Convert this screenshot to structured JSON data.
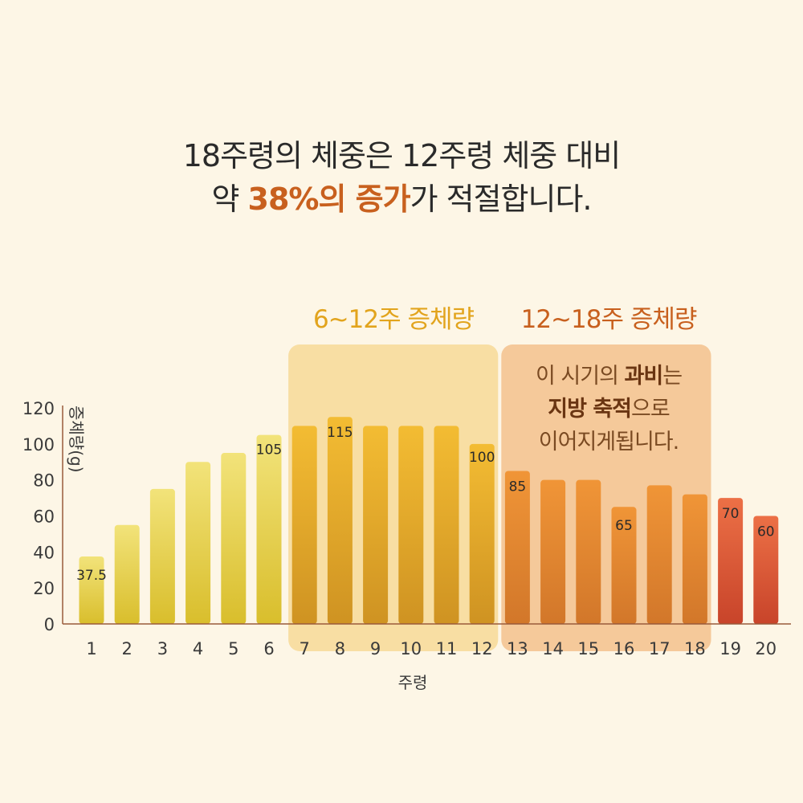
{
  "headline": {
    "line1": "18주령의 체중은 12주령 체중 대비",
    "line2_prefix": "약 ",
    "line2_accent_1": "38%의 증가",
    "line2_suffix": "가 적절합니다."
  },
  "periods": [
    {
      "label": "6~12주 증체량",
      "from": 7,
      "to": 12,
      "color": "#F8DEA3"
    },
    {
      "label": "12~18주 증체량",
      "from": 13,
      "to": 18,
      "color": "#F5C99A"
    }
  ],
  "note": {
    "line1_prefix": "이 시기의 ",
    "line1_bold": "과비",
    "line1_suffix": "는",
    "line2_bold": "지방 축적",
    "line2_suffix": "으로",
    "line3": "이어지게됩니다."
  },
  "chart_data": {
    "type": "bar",
    "categories": [
      "1",
      "2",
      "3",
      "4",
      "5",
      "6",
      "7",
      "8",
      "9",
      "10",
      "11",
      "12",
      "13",
      "14",
      "15",
      "16",
      "17",
      "18",
      "19",
      "20"
    ],
    "values": [
      37.5,
      55,
      75,
      90,
      95,
      105,
      110,
      115,
      110,
      110,
      110,
      100,
      85,
      80,
      80,
      65,
      77,
      72,
      70,
      60
    ],
    "value_labels": {
      "1": "37.5",
      "6": "105",
      "8": "115",
      "12": "100",
      "13": "85",
      "16": "65",
      "19": "70",
      "20": "60"
    },
    "ylabel": "증체량(g)",
    "xlabel": "주령",
    "ylim": [
      0,
      120
    ],
    "yticks": [
      0,
      20,
      40,
      60,
      80,
      100,
      120
    ],
    "grid": false,
    "colors": {
      "weeks_1_6": [
        "#F2E37A",
        "#D9BE2C"
      ],
      "weeks_7_12": [
        "#F3BC33",
        "#CF9322"
      ],
      "weeks_13_18": [
        "#F09537",
        "#D2772A"
      ],
      "weeks_19_20": [
        "#EC7046",
        "#C8442A"
      ],
      "axis": "#9A5A3A"
    }
  }
}
